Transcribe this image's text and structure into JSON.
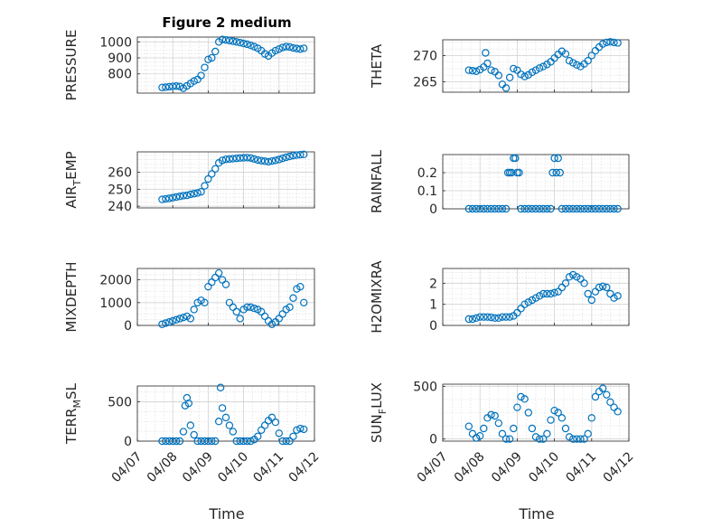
{
  "figure": {
    "title": "Figure 2 medium",
    "xlabel": "Time"
  },
  "x_ticks": [
    "04/07",
    "04/08",
    "04/09",
    "04/10",
    "04/11",
    "04/12"
  ],
  "colors": {
    "marker": "#0072BD",
    "axis": "#262626",
    "grid": "#d9d9d9"
  },
  "chart_data": [
    {
      "type": "scatter",
      "ylabel": "PRESSURE",
      "ylabel_sub": null,
      "ylim": [
        680,
        1030
      ],
      "yticks": [
        800,
        900,
        1000
      ],
      "x": [
        0.7,
        0.8,
        0.9,
        1.0,
        1.1,
        1.2,
        1.3,
        1.4,
        1.5,
        1.6,
        1.7,
        1.8,
        1.9,
        2.0,
        2.1,
        2.2,
        2.3,
        2.4,
        2.5,
        2.6,
        2.7,
        2.8,
        2.9,
        3.0,
        3.1,
        3.2,
        3.3,
        3.4,
        3.5,
        3.6,
        3.7,
        3.8,
        3.9,
        4.0,
        4.1,
        4.2,
        4.3,
        4.4,
        4.5,
        4.6,
        4.7
      ],
      "y": [
        715,
        717,
        720,
        722,
        724,
        721,
        710,
        725,
        740,
        755,
        765,
        790,
        840,
        890,
        900,
        940,
        1000,
        1015,
        1012,
        1008,
        1004,
        1000,
        995,
        990,
        985,
        978,
        970,
        960,
        945,
        925,
        912,
        930,
        945,
        955,
        965,
        970,
        968,
        962,
        958,
        955,
        960
      ]
    },
    {
      "type": "scatter",
      "ylabel": "THETA",
      "ylabel_sub": null,
      "ylim": [
        263,
        273
      ],
      "yticks": [
        265,
        270
      ],
      "x": [
        0.7,
        0.8,
        0.9,
        1.0,
        1.1,
        1.15,
        1.2,
        1.3,
        1.4,
        1.5,
        1.6,
        1.7,
        1.8,
        1.9,
        2.0,
        2.1,
        2.2,
        2.3,
        2.4,
        2.5,
        2.6,
        2.7,
        2.8,
        2.9,
        3.0,
        3.1,
        3.2,
        3.3,
        3.4,
        3.5,
        3.6,
        3.7,
        3.8,
        3.9,
        4.0,
        4.1,
        4.2,
        4.3,
        4.4,
        4.5,
        4.6,
        4.7
      ],
      "y": [
        267.2,
        267.1,
        267.0,
        267.3,
        267.8,
        270.5,
        268.5,
        267.2,
        266.9,
        266.2,
        264.5,
        263.8,
        265.8,
        267.5,
        267.2,
        266.4,
        266.0,
        266.3,
        266.8,
        267.2,
        267.6,
        267.9,
        268.3,
        268.8,
        269.5,
        270.2,
        270.8,
        270.3,
        269.0,
        268.6,
        268.2,
        267.9,
        268.4,
        269.0,
        270.0,
        270.9,
        271.6,
        272.2,
        272.5,
        272.6,
        272.5,
        272.4
      ]
    },
    {
      "type": "scatter",
      "ylabel": "AIR",
      "ylabel_sub": "T",
      "ylabel_suffix": "EMP",
      "ylim": [
        239,
        272
      ],
      "yticks": [
        240,
        250,
        260
      ],
      "x": [
        0.7,
        0.8,
        0.9,
        1.0,
        1.1,
        1.2,
        1.3,
        1.4,
        1.5,
        1.6,
        1.7,
        1.8,
        1.9,
        2.0,
        2.1,
        2.2,
        2.3,
        2.4,
        2.5,
        2.6,
        2.7,
        2.8,
        2.9,
        3.0,
        3.1,
        3.2,
        3.3,
        3.4,
        3.5,
        3.6,
        3.7,
        3.8,
        3.9,
        4.0,
        4.1,
        4.2,
        4.3,
        4.4,
        4.5,
        4.6,
        4.7
      ],
      "y": [
        244,
        244.3,
        244.6,
        245,
        245.4,
        245.8,
        246.2,
        246.4,
        247,
        247.4,
        247.8,
        248.5,
        252,
        256,
        259,
        262,
        265.5,
        267,
        267.6,
        267.8,
        268,
        268.2,
        268.4,
        268.5,
        268.6,
        268.4,
        267.8,
        267.2,
        266.8,
        266.5,
        266.2,
        266.6,
        267,
        267.5,
        268.2,
        268.8,
        269.3,
        269.8,
        270.1,
        270.3,
        270.5
      ]
    },
    {
      "type": "scatter",
      "ylabel": "RAINFALL",
      "ylabel_sub": null,
      "ylim": [
        0,
        0.3
      ],
      "yticks": [
        0,
        0.1,
        0.2
      ],
      "x": [
        0.7,
        0.8,
        0.9,
        1.0,
        1.1,
        1.2,
        1.3,
        1.4,
        1.5,
        1.6,
        1.7,
        1.75,
        1.8,
        1.85,
        1.9,
        1.95,
        2.0,
        2.05,
        2.1,
        2.2,
        2.3,
        2.4,
        2.5,
        2.6,
        2.7,
        2.8,
        2.9,
        2.95,
        3.0,
        3.05,
        3.1,
        3.15,
        3.2,
        3.3,
        3.4,
        3.5,
        3.6,
        3.7,
        3.8,
        3.9,
        4.0,
        4.1,
        4.2,
        4.3,
        4.4,
        4.5,
        4.6,
        4.7
      ],
      "y": [
        0,
        0,
        0,
        0,
        0,
        0,
        0,
        0,
        0,
        0,
        0,
        0.2,
        0.2,
        0.2,
        0.28,
        0.28,
        0.2,
        0.2,
        0,
        0,
        0,
        0,
        0,
        0,
        0,
        0,
        0,
        0.2,
        0.28,
        0.2,
        0.28,
        0.2,
        0,
        0,
        0,
        0,
        0,
        0,
        0,
        0,
        0,
        0,
        0,
        0,
        0,
        0,
        0,
        0
      ]
    },
    {
      "type": "scatter",
      "ylabel": "MIXDEPTH",
      "ylabel_sub": null,
      "ylim": [
        0,
        2500
      ],
      "yticks": [
        0,
        1000,
        2000
      ],
      "x": [
        0.7,
        0.8,
        0.9,
        1.0,
        1.1,
        1.2,
        1.3,
        1.4,
        1.5,
        1.6,
        1.7,
        1.8,
        1.9,
        2.0,
        2.1,
        2.2,
        2.3,
        2.4,
        2.5,
        2.6,
        2.7,
        2.8,
        2.9,
        3.0,
        3.1,
        3.2,
        3.3,
        3.4,
        3.5,
        3.6,
        3.7,
        3.8,
        3.9,
        4.0,
        4.1,
        4.2,
        4.3,
        4.4,
        4.5,
        4.6,
        4.7
      ],
      "y": [
        50,
        100,
        150,
        200,
        250,
        300,
        350,
        400,
        300,
        700,
        1000,
        1100,
        1000,
        1700,
        1900,
        2100,
        2300,
        2000,
        1800,
        1000,
        800,
        600,
        300,
        700,
        800,
        800,
        750,
        700,
        600,
        400,
        200,
        50,
        150,
        300,
        500,
        700,
        800,
        1200,
        1600,
        1700,
        1000
      ]
    },
    {
      "type": "scatter",
      "ylabel": "H2OMIXRA",
      "ylabel_sub": null,
      "ylim": [
        0,
        2.7
      ],
      "yticks": [
        0,
        1,
        2
      ],
      "x": [
        0.7,
        0.8,
        0.9,
        1.0,
        1.1,
        1.2,
        1.3,
        1.4,
        1.5,
        1.6,
        1.7,
        1.8,
        1.9,
        2.0,
        2.1,
        2.2,
        2.3,
        2.4,
        2.5,
        2.6,
        2.7,
        2.8,
        2.9,
        3.0,
        3.1,
        3.2,
        3.3,
        3.4,
        3.5,
        3.6,
        3.7,
        3.8,
        3.9,
        4.0,
        4.1,
        4.2,
        4.3,
        4.4,
        4.5,
        4.6,
        4.7
      ],
      "y": [
        0.3,
        0.3,
        0.35,
        0.4,
        0.4,
        0.4,
        0.38,
        0.35,
        0.35,
        0.4,
        0.4,
        0.4,
        0.45,
        0.6,
        0.8,
        1.0,
        1.1,
        1.2,
        1.3,
        1.4,
        1.5,
        1.5,
        1.5,
        1.55,
        1.6,
        1.8,
        2.0,
        2.3,
        2.4,
        2.3,
        2.2,
        2.0,
        1.5,
        1.2,
        1.6,
        1.8,
        1.85,
        1.8,
        1.5,
        1.3,
        1.4
      ]
    },
    {
      "type": "scatter",
      "ylabel": "TERR",
      "ylabel_sub": "M",
      "ylabel_suffix": "SL",
      "ylim": [
        0,
        700
      ],
      "yticks": [
        0,
        500
      ],
      "x": [
        0.7,
        0.8,
        0.9,
        1.0,
        1.1,
        1.2,
        1.3,
        1.35,
        1.4,
        1.45,
        1.5,
        1.6,
        1.7,
        1.8,
        1.9,
        2.0,
        2.1,
        2.2,
        2.3,
        2.35,
        2.4,
        2.5,
        2.6,
        2.7,
        2.8,
        2.9,
        3.0,
        3.1,
        3.2,
        3.3,
        3.4,
        3.5,
        3.6,
        3.7,
        3.8,
        3.9,
        4.0,
        4.1,
        4.2,
        4.3,
        4.4,
        4.5,
        4.6,
        4.7
      ],
      "y": [
        0,
        0,
        0,
        0,
        0,
        0,
        120,
        450,
        550,
        480,
        200,
        80,
        0,
        0,
        0,
        0,
        0,
        0,
        250,
        680,
        420,
        300,
        200,
        120,
        0,
        0,
        0,
        0,
        0,
        20,
        60,
        140,
        200,
        260,
        300,
        240,
        100,
        0,
        0,
        0,
        60,
        140,
        160,
        150
      ]
    },
    {
      "type": "scatter",
      "ylabel": "SUN",
      "ylabel_sub": "F",
      "ylabel_suffix": "LUX",
      "ylim": [
        -20,
        520
      ],
      "yticks": [
        0,
        500
      ],
      "x": [
        0.7,
        0.8,
        0.9,
        1.0,
        1.1,
        1.2,
        1.3,
        1.4,
        1.5,
        1.6,
        1.7,
        1.8,
        1.9,
        2.0,
        2.1,
        2.2,
        2.3,
        2.4,
        2.5,
        2.6,
        2.7,
        2.8,
        2.9,
        3.0,
        3.1,
        3.2,
        3.3,
        3.4,
        3.5,
        3.6,
        3.7,
        3.8,
        3.9,
        4.0,
        4.1,
        4.2,
        4.3,
        4.4,
        4.5,
        4.6,
        4.7
      ],
      "y": [
        120,
        50,
        10,
        30,
        100,
        200,
        230,
        220,
        150,
        50,
        0,
        0,
        100,
        300,
        400,
        380,
        250,
        100,
        20,
        0,
        0,
        50,
        180,
        270,
        250,
        200,
        100,
        20,
        0,
        0,
        0,
        0,
        50,
        200,
        400,
        450,
        480,
        420,
        350,
        300,
        260
      ]
    }
  ]
}
